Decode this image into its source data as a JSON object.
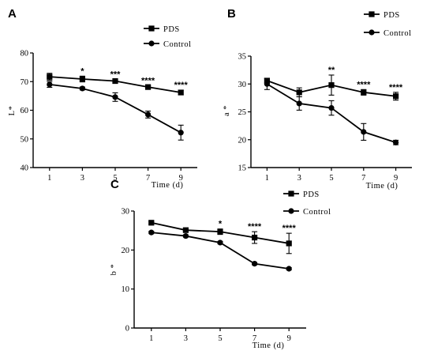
{
  "chart_data": [
    {
      "panel": "A",
      "type": "line",
      "xlabel": "Time (d)",
      "ylabel": "L*",
      "x": [
        1,
        3,
        5,
        7,
        9
      ],
      "xlim": [
        0,
        10
      ],
      "ylim": [
        40,
        80
      ],
      "yticks": [
        40,
        50,
        60,
        70,
        80
      ],
      "series": [
        {
          "name": "PDS",
          "marker": "square",
          "values": [
            71.7,
            70.9,
            70.2,
            68.1,
            66.2
          ],
          "errors": [
            1.2,
            1.0,
            0.5,
            0.5,
            0.8
          ]
        },
        {
          "name": "Control",
          "marker": "circle",
          "values": [
            69.0,
            67.6,
            64.6,
            58.5,
            52.2
          ],
          "errors": [
            1.0,
            0.5,
            1.5,
            1.2,
            2.6
          ]
        }
      ],
      "annotations": [
        {
          "x": 3,
          "text": "*"
        },
        {
          "x": 5,
          "text": "***"
        },
        {
          "x": 7,
          "text": "****"
        },
        {
          "x": 9,
          "text": "****"
        }
      ],
      "legend": "top-right",
      "grid": false
    },
    {
      "panel": "B",
      "type": "line",
      "xlabel": "Time (d)",
      "ylabel": "a *",
      "x": [
        1,
        3,
        5,
        7,
        9
      ],
      "xlim": [
        0,
        10
      ],
      "ylim": [
        15,
        35
      ],
      "yticks": [
        15,
        20,
        25,
        30,
        35
      ],
      "series": [
        {
          "name": "PDS",
          "marker": "square",
          "values": [
            30.6,
            28.5,
            29.8,
            28.5,
            27.8
          ],
          "errors": [
            0.4,
            0.8,
            1.8,
            0.5,
            0.7
          ]
        },
        {
          "name": "Control",
          "marker": "circle",
          "values": [
            30.0,
            26.5,
            25.7,
            21.4,
            19.5
          ],
          "errors": [
            1.0,
            1.2,
            1.3,
            1.5,
            0.4
          ]
        }
      ],
      "annotations": [
        {
          "x": 5,
          "text": "**"
        },
        {
          "x": 7,
          "text": "****"
        },
        {
          "x": 9,
          "text": "****"
        }
      ],
      "legend": "top-right",
      "grid": false
    },
    {
      "panel": "C",
      "type": "line",
      "xlabel": "Time (d)",
      "ylabel": "b *",
      "x": [
        1,
        3,
        5,
        7,
        9
      ],
      "xlim": [
        0,
        10
      ],
      "ylim": [
        0,
        30
      ],
      "yticks": [
        0,
        10,
        20,
        30
      ],
      "series": [
        {
          "name": "PDS",
          "marker": "square",
          "values": [
            27.0,
            25.1,
            24.7,
            23.2,
            21.7
          ],
          "errors": [
            0.3,
            0.3,
            0.7,
            1.5,
            2.6
          ]
        },
        {
          "name": "Control",
          "marker": "circle",
          "values": [
            24.5,
            23.6,
            21.9,
            16.5,
            15.2
          ],
          "errors": [
            0.3,
            0.3,
            0.3,
            0.3,
            0.3
          ]
        }
      ],
      "annotations": [
        {
          "x": 5,
          "text": "*"
        },
        {
          "x": 7,
          "text": "****"
        },
        {
          "x": 9,
          "text": "****"
        }
      ],
      "legend": "top-right",
      "grid": false
    }
  ]
}
